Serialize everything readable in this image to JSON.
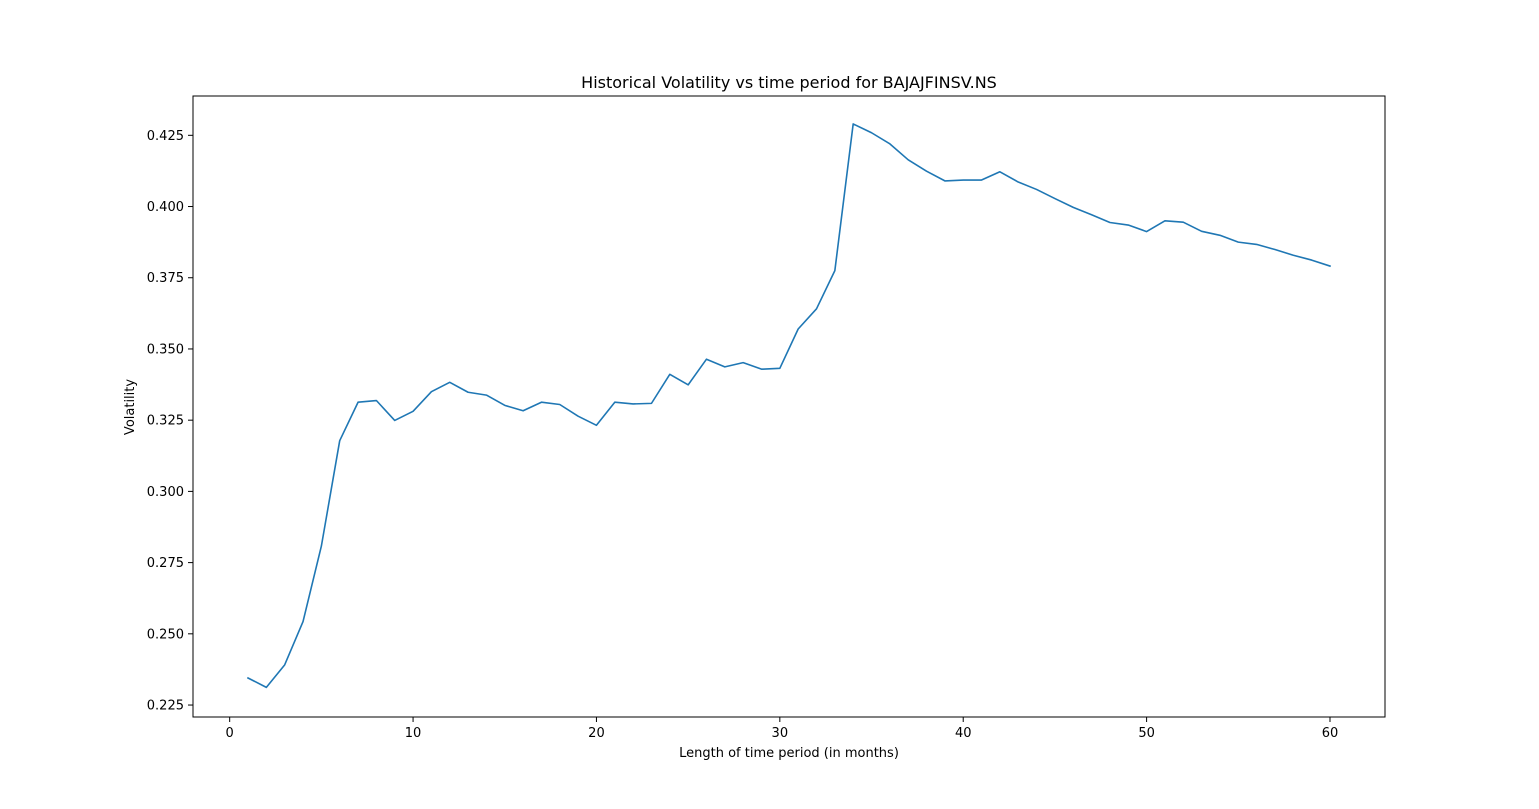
{
  "chart_data": {
    "type": "line",
    "title": "Historical Volatility vs time period for BAJAJFINSV.NS",
    "xlabel": "Length of time period (in months)",
    "ylabel": "Volatility",
    "xlim": [
      -2,
      63
    ],
    "ylim": [
      0.2208,
      0.4388
    ],
    "xticks": [
      0,
      10,
      20,
      30,
      40,
      50,
      60
    ],
    "xtick_labels": [
      "0",
      "10",
      "20",
      "30",
      "40",
      "50",
      "60"
    ],
    "yticks": [
      0.225,
      0.25,
      0.275,
      0.3,
      0.325,
      0.35,
      0.375,
      0.4,
      0.425
    ],
    "ytick_labels": [
      "0.225",
      "0.250",
      "0.275",
      "0.300",
      "0.325",
      "0.350",
      "0.375",
      "0.400",
      "0.425"
    ],
    "grid": false,
    "line_color": "#1f77b4",
    "series": [
      {
        "x": [
          1,
          2,
          3,
          4,
          5,
          6,
          7,
          8,
          9,
          10,
          11,
          12,
          13,
          14,
          15,
          16,
          17,
          18,
          19,
          20,
          21,
          22,
          23,
          24,
          25,
          26,
          27,
          28,
          29,
          30,
          31,
          32,
          33,
          34,
          35,
          36,
          37,
          38,
          39,
          40,
          41,
          42,
          43,
          44,
          45,
          46,
          47,
          48,
          49,
          50,
          51,
          52,
          53,
          54,
          55,
          56,
          57,
          58,
          59,
          60
        ],
        "values": [
          0.2345,
          0.2312,
          0.2391,
          0.2543,
          0.2808,
          0.3178,
          0.3313,
          0.3319,
          0.3249,
          0.3281,
          0.335,
          0.3383,
          0.3348,
          0.3338,
          0.3302,
          0.3283,
          0.3313,
          0.3305,
          0.3264,
          0.3232,
          0.3313,
          0.3307,
          0.3309,
          0.3411,
          0.3374,
          0.3464,
          0.3437,
          0.3452,
          0.3429,
          0.3432,
          0.357,
          0.3641,
          0.3775,
          0.429,
          0.4259,
          0.422,
          0.4164,
          0.4124,
          0.409,
          0.4093,
          0.4093,
          0.4122,
          0.4086,
          0.406,
          0.4028,
          0.3997,
          0.3971,
          0.3944,
          0.3935,
          0.3912,
          0.395,
          0.3945,
          0.3913,
          0.3899,
          0.3875,
          0.3867,
          0.3849,
          0.3829,
          0.3812,
          0.3791
        ]
      }
    ]
  }
}
